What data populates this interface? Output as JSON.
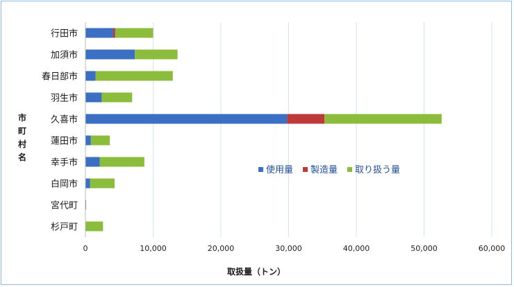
{
  "chart_data": {
    "type": "bar",
    "orientation": "horizontal",
    "stacked": true,
    "categories": [
      "行田市",
      "加須市",
      "春日部市",
      "羽生市",
      "久喜市",
      "蓮田市",
      "幸手市",
      "白岡市",
      "宮代町",
      "杉戸町"
    ],
    "series": [
      {
        "name": "使用量",
        "color": "#3a6fc4",
        "values": [
          4100,
          7300,
          1500,
          2400,
          29800,
          800,
          2100,
          700,
          100,
          0
        ]
      },
      {
        "name": "製造量",
        "color": "#c0393a",
        "values": [
          300,
          0,
          0,
          0,
          5500,
          0,
          0,
          0,
          0,
          0
        ]
      },
      {
        "name": "取り扱う量",
        "color": "#8cbc3c",
        "values": [
          5600,
          6300,
          11400,
          4500,
          17300,
          2800,
          6600,
          3600,
          0,
          2600
        ]
      }
    ],
    "xlabel": "取扱量（トン）",
    "ylabel": "市町村名",
    "xlim": [
      0,
      60000
    ],
    "xticks": [
      "0",
      "10,000",
      "20,000",
      "30,000",
      "40,000",
      "50,000",
      "60,000"
    ],
    "grid": true,
    "legend_position": "center-right"
  }
}
